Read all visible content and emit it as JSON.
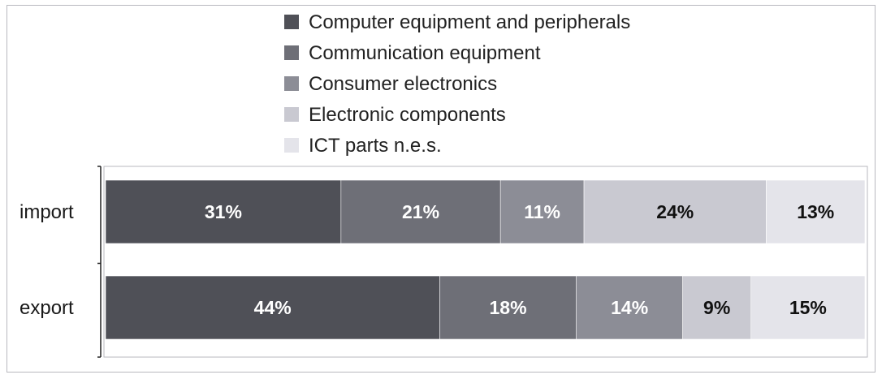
{
  "chart_data": {
    "type": "bar",
    "orientation": "horizontal",
    "stacked": true,
    "normalized_percent": true,
    "categories": [
      "import",
      "export"
    ],
    "series": [
      {
        "name": "Computer equipment and peripherals",
        "values": [
          31,
          44
        ],
        "labels": [
          "31%",
          "44%"
        ],
        "color": "#4f5057",
        "label_color": "#ffffff"
      },
      {
        "name": "Communication equipment",
        "values": [
          21,
          18
        ],
        "labels": [
          "21%",
          "18%"
        ],
        "color": "#6e6f77",
        "label_color": "#ffffff"
      },
      {
        "name": "Consumer electronics",
        "values": [
          11,
          14
        ],
        "labels": [
          "11%",
          "14%"
        ],
        "color": "#8c8d96",
        "label_color": "#ffffff"
      },
      {
        "name": "Electronic components",
        "values": [
          24,
          9
        ],
        "labels": [
          "24%",
          "9%"
        ],
        "color": "#c9c9d1",
        "label_color": "#111111"
      },
      {
        "name": "ICT parts n.e.s.",
        "values": [
          13,
          15
        ],
        "labels": [
          "13%",
          "15%"
        ],
        "color": "#e4e4ea",
        "label_color": "#111111"
      }
    ],
    "title": "",
    "xlabel": "",
    "ylabel": "",
    "xlim": [
      0,
      100
    ],
    "grid": false,
    "legend_position": "top"
  }
}
